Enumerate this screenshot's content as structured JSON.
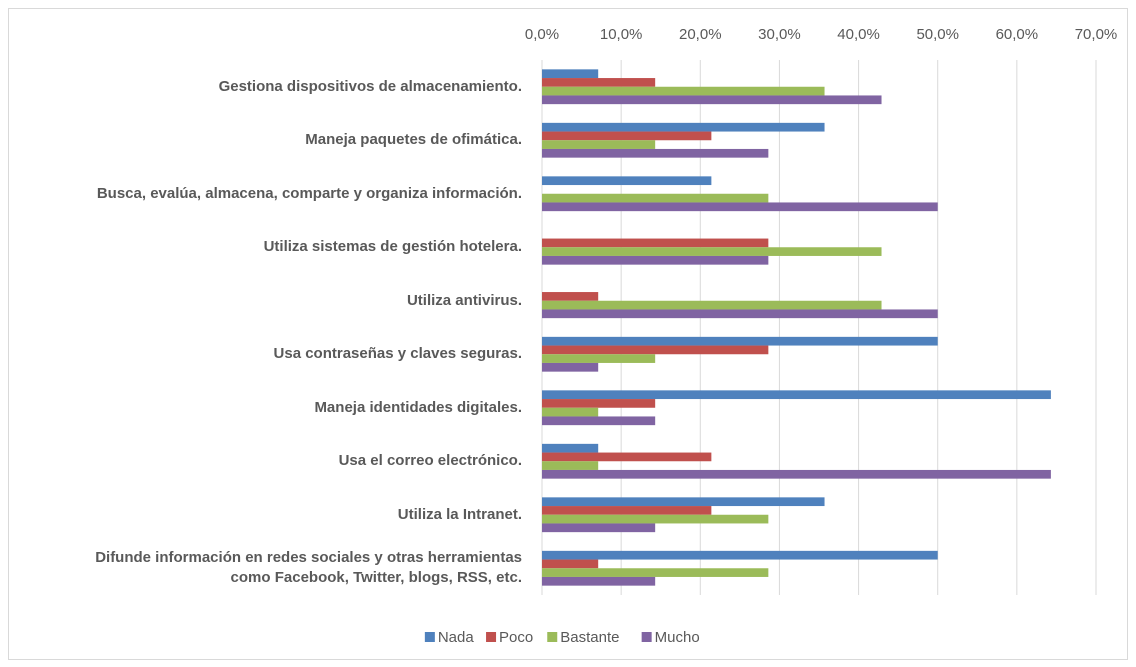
{
  "chart_data": {
    "type": "hbar",
    "categories": [
      "Gestiona dispositivos de almacenamiento.",
      "Maneja paquetes de ofimática.",
      "Busca, evalúa, almacena, comparte y organiza información.",
      "Utiliza sistemas de gestión hotelera.",
      "Utiliza antivirus.",
      "Usa contraseñas y claves seguras.",
      "Maneja identidades digitales.",
      "Usa el correo electrónico.",
      "Utiliza la Intranet.",
      "Difunde información en redes sociales y otras herramientas\ncomo Facebook, Twitter, blogs, RSS, etc."
    ],
    "series": [
      {
        "name": "Nada",
        "color": "#4f81bd",
        "values": [
          7.1,
          35.7,
          21.4,
          0,
          0,
          50,
          64.3,
          7.1,
          35.7,
          50
        ]
      },
      {
        "name": "Poco",
        "color": "#c0504d",
        "values": [
          14.3,
          21.4,
          0,
          28.6,
          7.1,
          28.6,
          14.3,
          21.4,
          21.4,
          7.1
        ]
      },
      {
        "name": "Bastante",
        "color": "#9bbb59",
        "values": [
          35.7,
          14.3,
          28.6,
          42.9,
          42.9,
          14.3,
          7.1,
          7.1,
          28.6,
          28.6
        ]
      },
      {
        "name": "Mucho",
        "color": "#8064a2",
        "values": [
          42.9,
          28.6,
          50,
          28.6,
          50,
          7.1,
          14.3,
          64.3,
          14.3,
          14.3
        ]
      }
    ],
    "xlim": [
      0,
      70
    ],
    "xticks": [
      {
        "value": 0,
        "label": "0,0%"
      },
      {
        "value": 10,
        "label": "10,0%"
      },
      {
        "value": 20,
        "label": "20,0%"
      },
      {
        "value": 30,
        "label": "30,0%"
      },
      {
        "value": 40,
        "label": "40,0%"
      },
      {
        "value": 50,
        "label": "50,0%"
      },
      {
        "value": 60,
        "label": "60,0%"
      },
      {
        "value": 70,
        "label": "70,0%"
      }
    ],
    "grid": true,
    "legend": "bottom"
  }
}
